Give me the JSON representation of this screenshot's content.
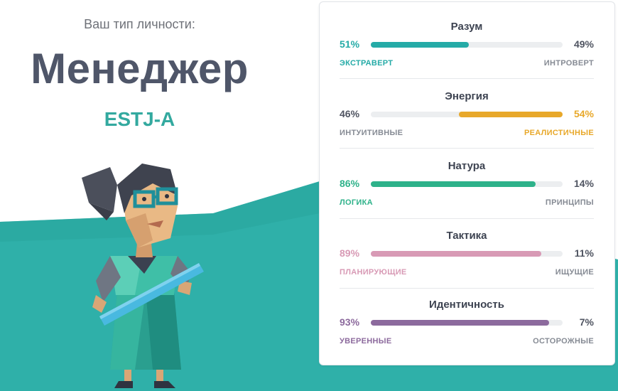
{
  "header": {
    "subtitle": "Ваш тип личности:",
    "type_name": "Менеджер",
    "type_code": "ESTJ-A"
  },
  "colors": {
    "teal": "#2fb0a9",
    "mind": "#25aba7",
    "energy": "#e8a82a",
    "nature": "#2eb28a",
    "tactics": "#d89ab5",
    "identity": "#8c6a9d"
  },
  "traits": [
    {
      "title": "Разум",
      "left_pct": "51%",
      "right_pct": "49%",
      "left_label": "ЭКСТРАВЕРТ",
      "right_label": "ИНТРОВЕРТ",
      "dominant": "left",
      "value": 51,
      "color": "#25aba7"
    },
    {
      "title": "Энергия",
      "left_pct": "46%",
      "right_pct": "54%",
      "left_label": "ИНТУИТИВНЫЕ",
      "right_label": "РЕАЛИСТИЧНЫЕ",
      "dominant": "right",
      "value": 54,
      "color": "#e8a82a"
    },
    {
      "title": "Натура",
      "left_pct": "86%",
      "right_pct": "14%",
      "left_label": "ЛОГИКА",
      "right_label": "ПРИНЦИПЫ",
      "dominant": "left",
      "value": 86,
      "color": "#2eb28a"
    },
    {
      "title": "Тактика",
      "left_pct": "89%",
      "right_pct": "11%",
      "left_label": "ПЛАНИРУЮЩИЕ",
      "right_label": "ИЩУЩИЕ",
      "dominant": "left",
      "value": 89,
      "color": "#d89ab5"
    },
    {
      "title": "Идентичность",
      "left_pct": "93%",
      "right_pct": "7%",
      "left_label": "УВЕРЕННЫЕ",
      "right_label": "ОСТОРОЖНЫЕ",
      "dominant": "left",
      "value": 93,
      "color": "#8c6a9d"
    }
  ]
}
